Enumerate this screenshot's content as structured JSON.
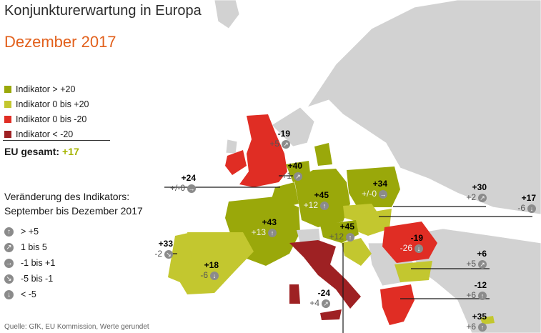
{
  "title": "Konjunkturerwartung in Europa",
  "subtitle": "Dezember 2017",
  "legend": [
    {
      "label": "Indikator > +20",
      "color": "#9aa80a"
    },
    {
      "label": "Indikator 0 bis +20",
      "color": "#c3c72f"
    },
    {
      "label": "Indikator 0 bis -20",
      "color": "#e02d24"
    },
    {
      "label": "Indikator < -20",
      "color": "#9e2123"
    }
  ],
  "eu_total": {
    "label": "EU gesamt:",
    "value": "+17"
  },
  "change_title_1": "Veränderung des Indikators:",
  "change_title_2": "September bis Dezember 2017",
  "change_legend": [
    {
      "icon": "arrow-up-icon",
      "glyph": "↑",
      "label": "> +5"
    },
    {
      "icon": "arrow-up-right-icon",
      "glyph": "↗",
      "label": "1 bis 5"
    },
    {
      "icon": "arrow-right-icon",
      "glyph": "→",
      "label": "-1 bis +1"
    },
    {
      "icon": "arrow-down-right-icon",
      "glyph": "↘",
      "label": "-5 bis -1"
    },
    {
      "icon": "arrow-down-icon",
      "glyph": "↓",
      "label": "< -5"
    }
  ],
  "source": "Quelle: GfK, EU Kommission, Werte gerundet",
  "countries": [
    {
      "id": "uk",
      "value": "-19",
      "change": "+5",
      "glyph": "↗"
    },
    {
      "id": "benelux",
      "value": "+24",
      "change": "+/-0",
      "glyph": "→"
    },
    {
      "id": "nl",
      "value": "+40",
      "change": "+1",
      "glyph": "↗"
    },
    {
      "id": "de",
      "value": "+45",
      "change": "+12",
      "glyph": "↑"
    },
    {
      "id": "pl",
      "value": "+34",
      "change": "+/-0",
      "glyph": "→"
    },
    {
      "id": "cz",
      "value": "+30",
      "change": "+2",
      "glyph": "↗"
    },
    {
      "id": "hu",
      "value": "+17",
      "change": "-6",
      "glyph": "↓"
    },
    {
      "id": "fr",
      "value": "+43",
      "change": "+13",
      "glyph": "↑"
    },
    {
      "id": "at",
      "value": "+45",
      "change": "+12",
      "glyph": "↑"
    },
    {
      "id": "ro",
      "value": "-19",
      "change": "-26",
      "glyph": "↓"
    },
    {
      "id": "pt",
      "value": "+33",
      "change": "-2",
      "glyph": "↘"
    },
    {
      "id": "es",
      "value": "+18",
      "change": "-6",
      "glyph": "↓"
    },
    {
      "id": "bg",
      "value": "+6",
      "change": "+5",
      "glyph": "↗"
    },
    {
      "id": "it",
      "value": "-24",
      "change": "+4",
      "glyph": "↗"
    },
    {
      "id": "gr",
      "value": "-12",
      "change": "+6",
      "glyph": "↑"
    },
    {
      "id": "cy",
      "value": "+35",
      "change": "+6",
      "glyph": "↑"
    }
  ]
}
